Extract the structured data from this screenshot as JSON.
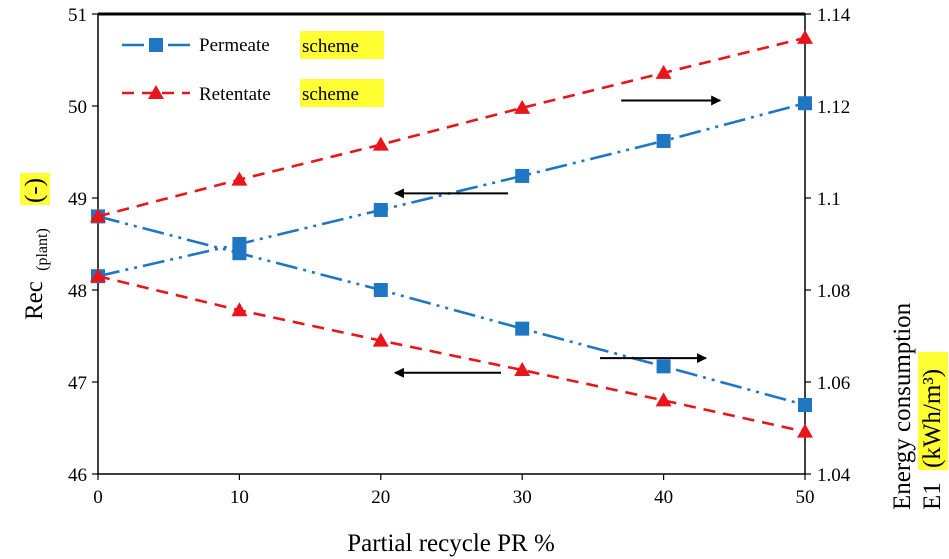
{
  "chart_data": {
    "type": "line",
    "x": [
      0,
      10,
      20,
      30,
      40,
      50
    ],
    "xlabel": "Partial recycle PR %",
    "xlim": [
      0,
      50
    ],
    "x_ticks": [
      "0",
      "10",
      "20",
      "30",
      "40",
      "50"
    ],
    "ylabel": {
      "main": "Rec",
      "subscript": "(plant)",
      "unit": "(-)"
    },
    "ylim": [
      46,
      51
    ],
    "y_ticks": [
      "46",
      "47",
      "48",
      "49",
      "50",
      "51"
    ],
    "y2label": {
      "line1": "Energy consumption",
      "line2_prefix": "E1",
      "line2_unit": "(kWh/m³)"
    },
    "y2lim": [
      1.04,
      1.14
    ],
    "y2_ticks": [
      "1.04",
      "1.06",
      "1.08",
      "1.1",
      "1.12",
      "1.14"
    ],
    "grid": false,
    "legend_position": "top-left",
    "series": [
      {
        "name_word": "Permeate",
        "name_highlight": "scheme",
        "axis": "left",
        "values": [
          48.15,
          48.5,
          48.87,
          49.24,
          49.62,
          50.03
        ],
        "color": "#1f77c4",
        "marker": "square",
        "dash": "dash-dot-dot"
      },
      {
        "name_word": "Permeate",
        "name_highlight": "scheme",
        "axis": "right",
        "values": [
          1.096,
          1.088,
          1.08,
          1.0716,
          1.0634,
          1.055
        ],
        "color": "#1f77c4",
        "marker": "square",
        "dash": "dash-dot-dot"
      },
      {
        "name_word": "Retentate",
        "name_highlight": "scheme",
        "axis": "left",
        "values": [
          48.8,
          49.2,
          49.58,
          49.98,
          50.36,
          50.74
        ],
        "color": "#e8151b",
        "marker": "triangle",
        "dash": "dash"
      },
      {
        "name_word": "Retentate",
        "name_highlight": "scheme",
        "axis": "right",
        "values": [
          1.083,
          1.0756,
          1.069,
          1.0626,
          1.056,
          1.0492
        ],
        "color": "#e8151b",
        "marker": "triangle",
        "dash": "dash"
      }
    ],
    "arrows": [
      {
        "direction": "right",
        "x_from": 37,
        "x_to": 44,
        "y": 50.06,
        "axis": "left"
      },
      {
        "direction": "left",
        "x_from": 29,
        "x_to": 21,
        "y": 49.05,
        "axis": "left"
      },
      {
        "direction": "right",
        "x_from": 35.5,
        "x_to": 43,
        "y": 47.26,
        "axis": "left"
      },
      {
        "direction": "left",
        "x_from": 28.5,
        "x_to": 21,
        "y": 47.1,
        "axis": "left"
      }
    ]
  }
}
